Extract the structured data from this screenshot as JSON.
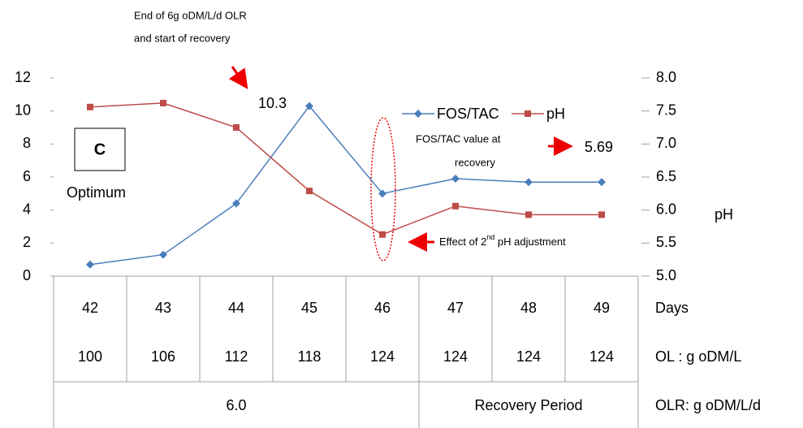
{
  "chart_data": {
    "type": "line",
    "categories": [
      "42",
      "43",
      "44",
      "45",
      "46",
      "47",
      "48",
      "49"
    ],
    "series": [
      {
        "name": "FOS/TAC",
        "color": "#4a7ebb",
        "values": [
          0.7,
          1.3,
          4.4,
          10.3,
          5.0,
          5.9,
          5.69,
          5.69
        ]
      },
      {
        "name": "pH",
        "color": "#be4b48",
        "axis": "y2",
        "values": [
          7.56,
          7.62,
          7.25,
          6.29,
          5.63,
          6.06,
          5.93,
          5.93
        ]
      }
    ],
    "ylim": [
      0,
      12
    ],
    "yticks": [
      0,
      2,
      4,
      6,
      8,
      10,
      12
    ],
    "y2lim": [
      5.0,
      8.0
    ],
    "y2ticks": [
      {
        "value": 5.0,
        "label": "5.0"
      },
      {
        "value": 5.5,
        "label": "5.5"
      },
      {
        "value": 6.0,
        "label": "6.0"
      },
      {
        "value": 6.5,
        "label": "6.5"
      },
      {
        "value": 7.0,
        "label": "7.0"
      },
      {
        "value": 7.5,
        "label": "7.5"
      },
      {
        "value": 8.0,
        "label": "8.0"
      }
    ],
    "y2_label": "pH",
    "annotations": {
      "olr_end": [
        "End of 6g oDM/L/d OLR",
        "and start of recovery"
      ],
      "panel": "C",
      "optimum": "Optimum",
      "recovery_value": [
        "FOS/TAC value at",
        "recovery"
      ],
      "ph_adjust": [
        "Effect of 2",
        "nd",
        " pH adjustment"
      ]
    },
    "table": {
      "row_labels": [
        "Days",
        "OL   : g oDM/L",
        "OLR: g oDM/L/d"
      ],
      "ol": [
        100,
        106,
        112,
        118,
        124,
        124,
        124,
        124
      ],
      "olr_groups": [
        "6.0",
        "Recovery Period"
      ]
    }
  }
}
